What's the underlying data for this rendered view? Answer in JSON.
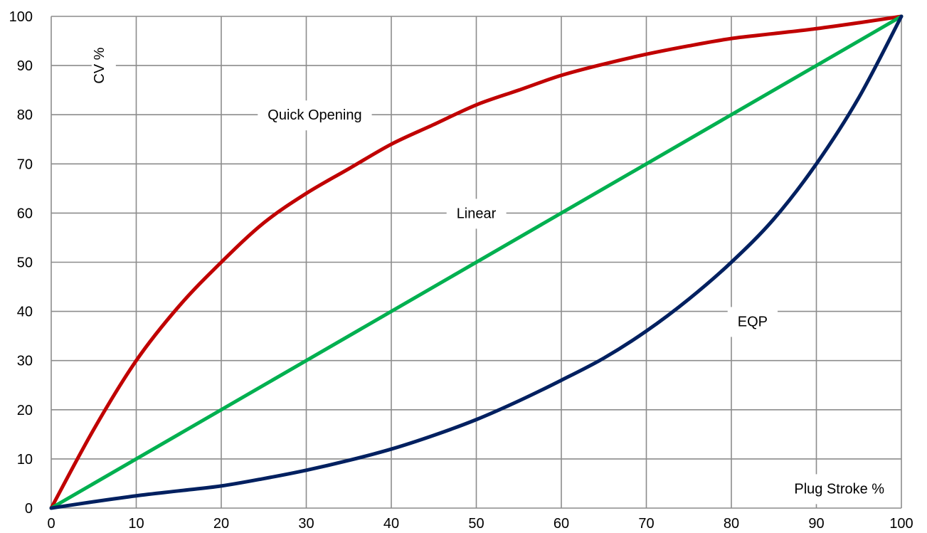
{
  "chart_data": {
    "type": "line",
    "title": "",
    "xlabel": "Plug Stroke %",
    "ylabel": "CV %",
    "xlim": [
      0,
      100
    ],
    "ylim": [
      0,
      100
    ],
    "x_ticks": [
      "0",
      "10",
      "20",
      "30",
      "40",
      "50",
      "60",
      "70",
      "80",
      "90",
      "100"
    ],
    "y_ticks": [
      "0",
      "10",
      "20",
      "30",
      "40",
      "50",
      "60",
      "70",
      "80",
      "90",
      "100"
    ],
    "grid": true,
    "legend": "none",
    "series": [
      {
        "name": "Quick Opening",
        "color": "#c00000",
        "x": [
          0,
          5,
          10,
          15,
          20,
          25,
          30,
          35,
          40,
          45,
          50,
          55,
          60,
          65,
          70,
          75,
          80,
          85,
          90,
          95,
          100
        ],
        "y": [
          0,
          16,
          30,
          41,
          50,
          58,
          64,
          69,
          74,
          78,
          82,
          85,
          88,
          90.3,
          92.3,
          94,
          95.5,
          96.5,
          97.5,
          98.7,
          100
        ]
      },
      {
        "name": "Linear",
        "color": "#00b050",
        "x": [
          0,
          100
        ],
        "y": [
          0,
          100
        ]
      },
      {
        "name": "EQP",
        "color": "#002060",
        "x": [
          0,
          5,
          10,
          15,
          20,
          25,
          30,
          35,
          40,
          45,
          50,
          55,
          60,
          65,
          70,
          75,
          80,
          85,
          90,
          95,
          100
        ],
        "y": [
          0,
          1.3,
          2.5,
          3.5,
          4.5,
          6,
          7.7,
          9.7,
          12,
          14.8,
          18,
          21.8,
          26,
          30.5,
          36,
          42.5,
          50,
          58.8,
          70,
          83.5,
          100
        ]
      }
    ],
    "annotations": [
      {
        "text": "Quick Opening",
        "x": 31,
        "y": 80
      },
      {
        "text": "Linear",
        "x": 50,
        "y": 60
      },
      {
        "text": "EQP",
        "x": 82.5,
        "y": 38
      },
      {
        "text": "Plug Stroke %",
        "x": 98,
        "y": 4
      },
      {
        "text": "CV %",
        "x": 3,
        "y": 90
      }
    ]
  }
}
